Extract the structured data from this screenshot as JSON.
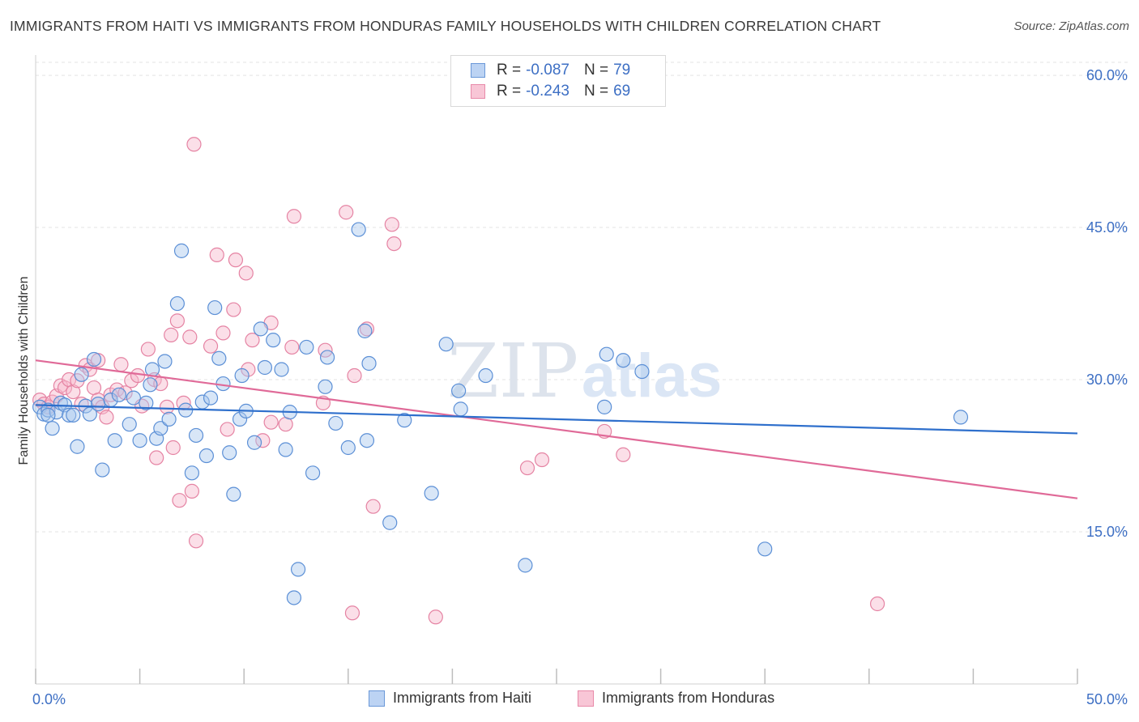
{
  "header": {
    "title": "IMMIGRANTS FROM HAITI VS IMMIGRANTS FROM HONDURAS FAMILY HOUSEHOLDS WITH CHILDREN CORRELATION CHART",
    "source": "Source: ZipAtlas.com"
  },
  "watermark": {
    "zip": "ZIP",
    "atlas": "atlas"
  },
  "colors": {
    "haiti_fill": "#a9c7ee",
    "haiti_stroke": "#5b8fd6",
    "haiti_line": "#2e6fcc",
    "honduras_fill": "#f6b8cb",
    "honduras_stroke": "#e583a3",
    "honduras_line": "#e06a98",
    "tick_label": "#3d6fc4",
    "grid": "#e3e3e3"
  },
  "legend": {
    "rows": [
      {
        "r_label": "R =",
        "r_value": "-0.087",
        "n_label": "N =",
        "n_value": "79"
      },
      {
        "r_label": "R =",
        "r_value": "-0.243",
        "n_label": "N =",
        "n_value": "69"
      }
    ]
  },
  "chart_data": {
    "type": "scatter",
    "title": "IMMIGRANTS FROM HAITI VS IMMIGRANTS FROM HONDURAS FAMILY HOUSEHOLDS WITH CHILDREN CORRELATION CHART",
    "xlabel": "",
    "ylabel": "Family Households with Children",
    "xlim": [
      0,
      50
    ],
    "ylim": [
      0,
      62
    ],
    "x_tick_labels": [
      "0.0%",
      "50.0%"
    ],
    "y_ticks": [
      15,
      30,
      45,
      60
    ],
    "y_tick_labels": [
      "15.0%",
      "30.0%",
      "45.0%",
      "60.0%"
    ],
    "grid": true,
    "legend_position": "top-center",
    "series": [
      {
        "name": "Immigrants from Haiti",
        "trend": {
          "x0": 0,
          "y0": 27.5,
          "x1": 50,
          "y1": 24.7
        },
        "points": [
          [
            0.2,
            27.3
          ],
          [
            0.4,
            26.6
          ],
          [
            0.6,
            27.0
          ],
          [
            0.8,
            25.2
          ],
          [
            1.0,
            26.8
          ],
          [
            1.2,
            27.7
          ],
          [
            1.4,
            27.5
          ],
          [
            1.6,
            26.5
          ],
          [
            1.8,
            26.5
          ],
          [
            2.0,
            23.4
          ],
          [
            2.2,
            30.5
          ],
          [
            2.4,
            27.4
          ],
          [
            2.6,
            26.6
          ],
          [
            2.8,
            32.0
          ],
          [
            3.0,
            27.6
          ],
          [
            3.2,
            21.1
          ],
          [
            3.6,
            28.0
          ],
          [
            3.8,
            24.0
          ],
          [
            4.0,
            28.5
          ],
          [
            4.5,
            25.6
          ],
          [
            4.7,
            28.2
          ],
          [
            5.0,
            24.0
          ],
          [
            5.3,
            27.7
          ],
          [
            5.5,
            29.5
          ],
          [
            5.6,
            31.0
          ],
          [
            5.8,
            24.2
          ],
          [
            6.0,
            25.2
          ],
          [
            6.2,
            31.8
          ],
          [
            6.4,
            26.1
          ],
          [
            6.8,
            37.5
          ],
          [
            7.0,
            42.7
          ],
          [
            7.2,
            27.0
          ],
          [
            7.5,
            20.8
          ],
          [
            7.7,
            24.5
          ],
          [
            8.0,
            27.8
          ],
          [
            8.2,
            22.5
          ],
          [
            8.4,
            28.2
          ],
          [
            8.6,
            37.1
          ],
          [
            8.8,
            32.1
          ],
          [
            9.0,
            29.6
          ],
          [
            9.3,
            22.8
          ],
          [
            9.5,
            18.7
          ],
          [
            9.8,
            26.1
          ],
          [
            9.9,
            30.4
          ],
          [
            10.1,
            26.9
          ],
          [
            10.5,
            23.8
          ],
          [
            10.8,
            35.0
          ],
          [
            11.0,
            31.2
          ],
          [
            11.4,
            33.9
          ],
          [
            11.8,
            31.0
          ],
          [
            12.0,
            23.1
          ],
          [
            12.2,
            26.8
          ],
          [
            12.6,
            11.3
          ],
          [
            12.4,
            8.5
          ],
          [
            13.0,
            33.2
          ],
          [
            13.3,
            20.8
          ],
          [
            13.9,
            29.3
          ],
          [
            14.0,
            32.2
          ],
          [
            14.4,
            25.7
          ],
          [
            15.0,
            23.3
          ],
          [
            15.5,
            44.8
          ],
          [
            15.8,
            34.8
          ],
          [
            16.0,
            31.6
          ],
          [
            15.9,
            24.0
          ],
          [
            17.0,
            15.9
          ],
          [
            17.7,
            26.0
          ],
          [
            19.0,
            18.8
          ],
          [
            19.7,
            33.5
          ],
          [
            20.3,
            28.9
          ],
          [
            20.4,
            27.1
          ],
          [
            21.6,
            30.4
          ],
          [
            23.5,
            11.7
          ],
          [
            27.3,
            27.3
          ],
          [
            27.4,
            32.5
          ],
          [
            28.2,
            31.9
          ],
          [
            29.1,
            30.8
          ],
          [
            35.0,
            13.3
          ],
          [
            44.4,
            26.3
          ],
          [
            0.6,
            26.5
          ]
        ]
      },
      {
        "name": "Immigrants from Honduras",
        "trend": {
          "x0": 0,
          "y0": 31.9,
          "x1": 50,
          "y1": 18.3
        },
        "points": [
          [
            0.2,
            28.0
          ],
          [
            0.4,
            27.6
          ],
          [
            0.6,
            27.3
          ],
          [
            0.8,
            27.8
          ],
          [
            1.0,
            28.4
          ],
          [
            1.2,
            29.4
          ],
          [
            1.4,
            29.2
          ],
          [
            1.6,
            30.0
          ],
          [
            1.8,
            28.8
          ],
          [
            2.0,
            29.9
          ],
          [
            2.2,
            27.6
          ],
          [
            2.4,
            31.4
          ],
          [
            2.6,
            31.0
          ],
          [
            2.8,
            29.2
          ],
          [
            3.0,
            28.0
          ],
          [
            3.2,
            27.3
          ],
          [
            3.4,
            26.3
          ],
          [
            3.6,
            28.5
          ],
          [
            3.9,
            29.0
          ],
          [
            4.1,
            31.5
          ],
          [
            4.3,
            28.7
          ],
          [
            4.6,
            29.9
          ],
          [
            4.9,
            30.4
          ],
          [
            5.1,
            27.4
          ],
          [
            5.4,
            33.0
          ],
          [
            5.7,
            30.0
          ],
          [
            6.0,
            29.6
          ],
          [
            6.3,
            27.3
          ],
          [
            6.5,
            34.4
          ],
          [
            6.6,
            23.3
          ],
          [
            6.8,
            35.8
          ],
          [
            7.1,
            27.7
          ],
          [
            7.4,
            34.2
          ],
          [
            7.5,
            19.0
          ],
          [
            7.7,
            14.1
          ],
          [
            7.6,
            53.2
          ],
          [
            8.4,
            33.3
          ],
          [
            8.7,
            42.3
          ],
          [
            9.0,
            34.6
          ],
          [
            9.2,
            25.1
          ],
          [
            9.5,
            36.9
          ],
          [
            9.6,
            41.8
          ],
          [
            10.1,
            40.5
          ],
          [
            10.2,
            31.0
          ],
          [
            10.4,
            33.9
          ],
          [
            10.9,
            24.0
          ],
          [
            11.3,
            35.6
          ],
          [
            11.3,
            25.8
          ],
          [
            12.0,
            25.6
          ],
          [
            12.3,
            33.2
          ],
          [
            12.4,
            46.1
          ],
          [
            13.9,
            32.9
          ],
          [
            13.8,
            27.7
          ],
          [
            14.9,
            46.5
          ],
          [
            15.3,
            30.4
          ],
          [
            15.2,
            7.0
          ],
          [
            15.9,
            35.0
          ],
          [
            16.2,
            17.5
          ],
          [
            17.1,
            45.3
          ],
          [
            17.2,
            43.4
          ],
          [
            19.2,
            6.6
          ],
          [
            23.6,
            21.3
          ],
          [
            24.3,
            22.1
          ],
          [
            27.3,
            24.9
          ],
          [
            28.2,
            22.6
          ],
          [
            40.4,
            7.9
          ],
          [
            5.8,
            22.3
          ],
          [
            6.9,
            18.1
          ],
          [
            3.0,
            31.9
          ]
        ]
      }
    ]
  },
  "bottom_legend": {
    "haiti": "Immigrants from Haiti",
    "honduras": "Immigrants from Honduras"
  }
}
